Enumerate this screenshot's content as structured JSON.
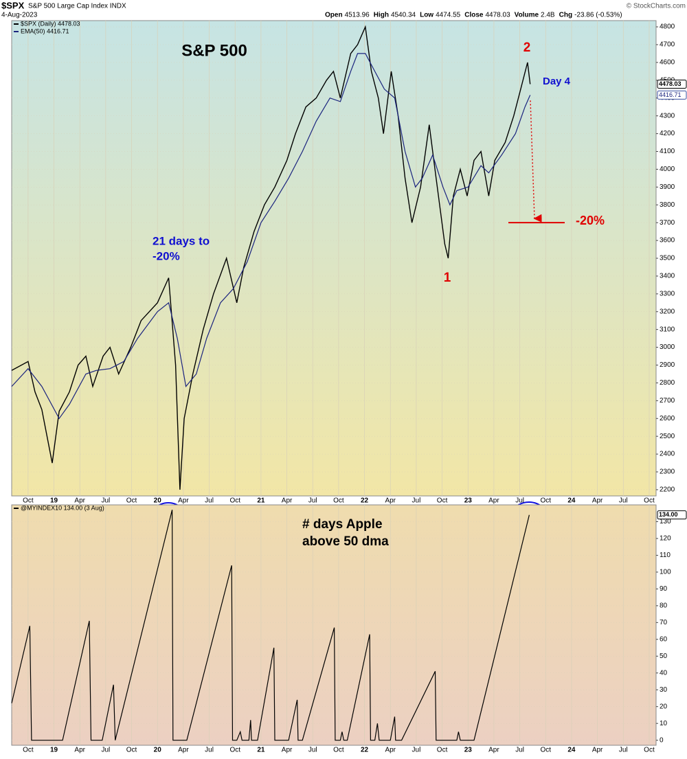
{
  "header": {
    "symbol": "$SPX",
    "name": "S&P 500 Large Cap Index INDX",
    "date": "4-Aug-2023",
    "credit": "© StockCharts.com",
    "quote": [
      {
        "label": "Open",
        "text": "4513.96"
      },
      {
        "label": "High",
        "text": "4540.34"
      },
      {
        "label": "Low",
        "text": "4474.55"
      },
      {
        "label": "Close",
        "text": "4478.03"
      },
      {
        "label": "Volume",
        "text": "2.4B"
      },
      {
        "label": "Chg",
        "text": "-23.86 (-0.53%)"
      }
    ]
  },
  "chart_data": [
    {
      "type": "line",
      "title": "S&P 500",
      "xlim": [
        -4.9,
        69.8
      ],
      "xticks": [
        {
          "value": -3,
          "label": "Oct"
        },
        {
          "value": 0,
          "label": "19"
        },
        {
          "value": 3,
          "label": "Apr"
        },
        {
          "value": 6,
          "label": "Jul"
        },
        {
          "value": 9,
          "label": "Oct"
        },
        {
          "value": 12,
          "label": "20"
        },
        {
          "value": 15,
          "label": "Apr"
        },
        {
          "value": 18,
          "label": "Jul"
        },
        {
          "value": 21,
          "label": "Oct"
        },
        {
          "value": 24,
          "label": "21"
        },
        {
          "value": 27,
          "label": "Apr"
        },
        {
          "value": 30,
          "label": "Jul"
        },
        {
          "value": 33,
          "label": "Oct"
        },
        {
          "value": 36,
          "label": "22"
        },
        {
          "value": 39,
          "label": "Apr"
        },
        {
          "value": 42,
          "label": "Jul"
        },
        {
          "value": 45,
          "label": "Oct"
        },
        {
          "value": 48,
          "label": "23"
        },
        {
          "value": 51,
          "label": "Apr"
        },
        {
          "value": 54,
          "label": "Jul"
        },
        {
          "value": 57,
          "label": "Oct"
        },
        {
          "value": 60,
          "label": "24"
        },
        {
          "value": 63,
          "label": "Apr"
        },
        {
          "value": 66,
          "label": "Jul"
        },
        {
          "value": 69,
          "label": "Oct"
        }
      ],
      "ylim": [
        2165,
        4835
      ],
      "yticks": [
        2200,
        2300,
        2400,
        2500,
        2600,
        2700,
        2800,
        2900,
        3000,
        3100,
        3200,
        3300,
        3400,
        3500,
        3600,
        3700,
        3800,
        3900,
        4000,
        4100,
        4200,
        4300,
        4400,
        4500,
        4600,
        4700,
        4800
      ],
      "grid": true,
      "series": [
        {
          "name": "$SPX (Daily) 4478.03",
          "color": "#000000",
          "last_label": "4478.03",
          "x": [
            -4.9,
            -3.0,
            -2.2,
            -1.4,
            -0.2,
            0.6,
            1.8,
            2.8,
            3.7,
            4.5,
            5.7,
            6.5,
            7.5,
            8.9,
            10.1,
            12.0,
            13.3,
            14.1,
            14.6,
            15.1,
            16.1,
            17.3,
            18.5,
            20.0,
            21.2,
            22.0,
            23.2,
            24.4,
            25.6,
            27.0,
            28.0,
            29.2,
            30.4,
            31.6,
            32.4,
            33.2,
            34.4,
            35.2,
            36.1,
            36.8,
            37.6,
            38.2,
            39.1,
            39.9,
            40.7,
            41.5,
            42.5,
            43.5,
            44.3,
            45.3,
            45.7,
            46.3,
            47.1,
            47.9,
            48.7,
            49.5,
            50.4,
            51.1,
            52.3,
            53.3,
            54.1,
            54.9,
            55.2
          ],
          "values": [
            2870,
            2920,
            2750,
            2650,
            2350,
            2640,
            2750,
            2900,
            2950,
            2780,
            2950,
            3000,
            2850,
            3000,
            3150,
            3250,
            3390,
            2900,
            2200,
            2600,
            2850,
            3100,
            3300,
            3500,
            3250,
            3450,
            3650,
            3800,
            3900,
            4050,
            4200,
            4350,
            4400,
            4500,
            4550,
            4400,
            4650,
            4700,
            4800,
            4550,
            4400,
            4200,
            4550,
            4300,
            3950,
            3700,
            3900,
            4250,
            3950,
            3580,
            3500,
            3850,
            4000,
            3850,
            4050,
            4100,
            3850,
            4050,
            4150,
            4300,
            4450,
            4600,
            4478.03
          ]
        },
        {
          "name": "EMA(50) 4416.71",
          "color": "#1a237e",
          "last_label": "4416.71",
          "x": [
            -4.9,
            -3.0,
            -1.4,
            0.6,
            1.8,
            3.7,
            4.9,
            6.5,
            8.1,
            9.7,
            12.0,
            13.3,
            14.3,
            15.3,
            16.5,
            17.7,
            19.3,
            20.8,
            22.4,
            24.0,
            25.6,
            27.2,
            28.8,
            30.4,
            32.0,
            33.2,
            34.4,
            35.2,
            36.1,
            37.2,
            38.3,
            39.5,
            40.7,
            41.9,
            42.7,
            43.9,
            45.1,
            45.9,
            46.7,
            48.0,
            49.5,
            50.4,
            51.9,
            53.5,
            54.6,
            55.2
          ],
          "values": [
            2780,
            2880,
            2780,
            2600,
            2680,
            2850,
            2870,
            2880,
            2920,
            3050,
            3200,
            3250,
            3050,
            2780,
            2850,
            3050,
            3250,
            3330,
            3480,
            3700,
            3820,
            3950,
            4100,
            4270,
            4400,
            4380,
            4550,
            4650,
            4650,
            4550,
            4450,
            4400,
            4100,
            3900,
            3950,
            4080,
            3900,
            3800,
            3880,
            3900,
            4020,
            3980,
            4080,
            4200,
            4350,
            4416.71
          ]
        }
      ],
      "reference_line": {
        "value": 3700,
        "label": "-20%"
      },
      "annotations": [
        "21 days to",
        "-20%",
        "1",
        "2",
        "Day 4"
      ]
    },
    {
      "type": "line",
      "title": "# days Apple",
      "xlim": [
        -4.9,
        69.8
      ],
      "xticks": [
        {
          "value": -3,
          "label": "Oct"
        },
        {
          "value": 0,
          "label": "19"
        },
        {
          "value": 3,
          "label": "Apr"
        },
        {
          "value": 6,
          "label": "Jul"
        },
        {
          "value": 9,
          "label": "Oct"
        },
        {
          "value": 12,
          "label": "20"
        },
        {
          "value": 15,
          "label": "Apr"
        },
        {
          "value": 18,
          "label": "Jul"
        },
        {
          "value": 21,
          "label": "Oct"
        },
        {
          "value": 24,
          "label": "21"
        },
        {
          "value": 27,
          "label": "Apr"
        },
        {
          "value": 30,
          "label": "Jul"
        },
        {
          "value": 33,
          "label": "Oct"
        },
        {
          "value": 36,
          "label": "22"
        },
        {
          "value": 39,
          "label": "Apr"
        },
        {
          "value": 42,
          "label": "Jul"
        },
        {
          "value": 45,
          "label": "Oct"
        },
        {
          "value": 48,
          "label": "23"
        },
        {
          "value": 51,
          "label": "Apr"
        },
        {
          "value": 54,
          "label": "Jul"
        },
        {
          "value": 57,
          "label": "Oct"
        },
        {
          "value": 60,
          "label": "24"
        },
        {
          "value": 63,
          "label": "Apr"
        },
        {
          "value": 66,
          "label": "Jul"
        },
        {
          "value": 69,
          "label": "Oct"
        }
      ],
      "ylim": [
        -3,
        140
      ],
      "yticks": [
        0,
        10,
        20,
        30,
        40,
        50,
        60,
        70,
        80,
        90,
        100,
        110,
        120,
        130
      ],
      "grid": true,
      "series": [
        {
          "name": "@MYINDEX10 134.00 (3 Aug)",
          "color": "#000000",
          "last_label": "134.00",
          "x": [
            -4.9,
            -2.8,
            -2.6,
            1.0,
            4.1,
            4.3,
            5.6,
            6.9,
            7.1,
            13.7,
            13.8,
            15.4,
            20.6,
            20.7,
            21.2,
            21.6,
            21.8,
            22.6,
            22.8,
            22.9,
            23.6,
            25.5,
            25.6,
            27.2,
            28.2,
            28.3,
            28.8,
            32.5,
            32.6,
            33.2,
            33.4,
            33.6,
            34.0,
            36.6,
            36.7,
            37.2,
            37.5,
            37.7,
            39.0,
            39.5,
            39.6,
            40.3,
            44.2,
            44.3,
            46.7,
            46.9,
            47.1,
            48.7,
            55.1
          ],
          "values": [
            22,
            68,
            0,
            0,
            71,
            0,
            0,
            33,
            0,
            137,
            0,
            0,
            104,
            0,
            0,
            5,
            0,
            0,
            12,
            0,
            0,
            55,
            0,
            0,
            24,
            0,
            0,
            67,
            0,
            0,
            5,
            0,
            0,
            63,
            0,
            0,
            10,
            0,
            0,
            14,
            0,
            0,
            41,
            0,
            0,
            5,
            0,
            0,
            134
          ]
        }
      ],
      "annotations": [
        "above 50 dma"
      ]
    }
  ]
}
